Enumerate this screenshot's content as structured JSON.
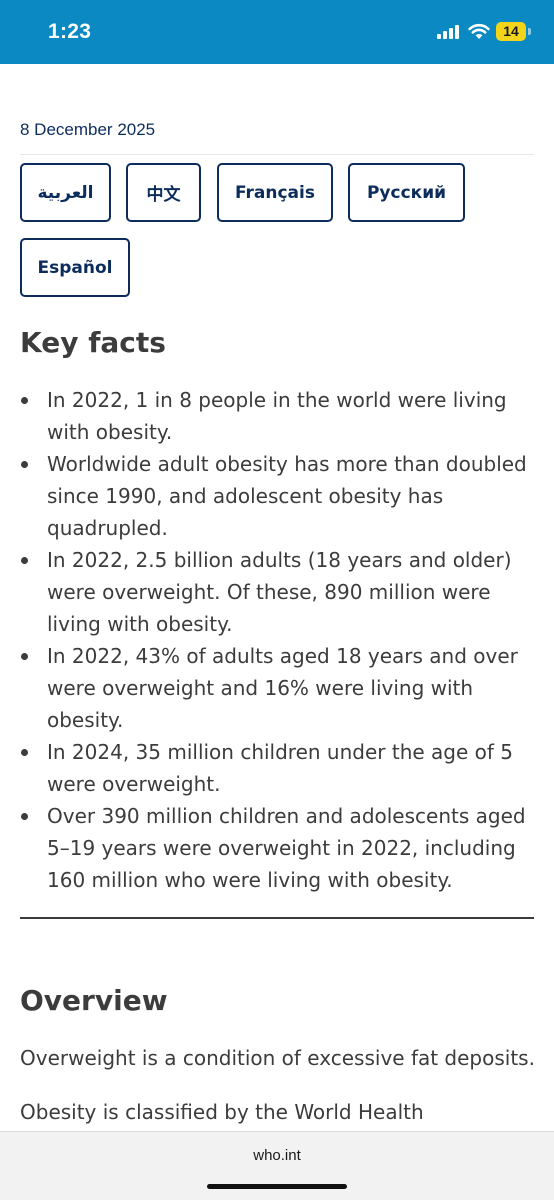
{
  "status_bar": {
    "time": "1:23",
    "battery": "14",
    "icons": [
      "signal-icon",
      "wifi-icon",
      "battery-icon"
    ],
    "background": "#0a89c2"
  },
  "article": {
    "date": "8 December 2025",
    "languages": [
      "العربية",
      "中文",
      "Français",
      "Русский",
      "Español"
    ],
    "key_facts_heading": "Key facts",
    "key_facts": [
      "In 2022, 1 in 8 people in the world were living with obesity.",
      "Worldwide adult obesity has more than doubled since 1990, and adolescent obesity has quadrupled.",
      "In 2022, 2.5 billion adults (18 years and older) were overweight. Of these, 890 million were living with obesity.",
      "In 2022, 43% of adults aged 18 years and over were overweight and 16% were living with obesity.",
      "In 2024, 35 million children under the age of 5 were overweight.",
      "Over 390 million children and adolescents aged 5–19 years were overweight in 2022, including 160 million who were living with obesity."
    ],
    "overview_heading": "Overview",
    "overview_paragraphs": [
      "Overweight is a condition of excessive fat deposits.",
      "Obesity is classified by the World Health"
    ]
  },
  "browser": {
    "url": "who.int"
  },
  "colors": {
    "brand_navy": "#0c2d5c",
    "text": "#3c3c3c"
  }
}
